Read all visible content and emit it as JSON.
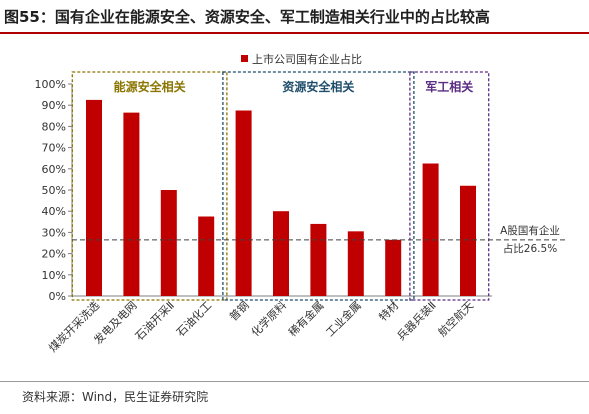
{
  "figure": {
    "title": "图55：国有企业在能源安全、资源安全、军工制造相关行业中的占比较高",
    "source": "资料来源：Wind，民生证券研究院"
  },
  "chart_data": {
    "type": "bar",
    "legend": "上市公司国有企业占比",
    "legend_position": "top",
    "categories": [
      "煤炭开采洗选",
      "发电及电网",
      "石油开采Ⅱ",
      "石油化工",
      "普钢",
      "化学原料",
      "稀有金属",
      "工业金属",
      "特材",
      "兵器兵装Ⅱ",
      "航空航天"
    ],
    "values": [
      92.5,
      86.5,
      50,
      37.5,
      87.5,
      40,
      34,
      30.5,
      26.5,
      62.5,
      52
    ],
    "ylim": [
      0,
      100
    ],
    "yticks": [
      "0%",
      "10%",
      "20%",
      "30%",
      "40%",
      "50%",
      "60%",
      "70%",
      "80%",
      "90%",
      "100%"
    ],
    "bar_color": "#c00000",
    "reference_line": {
      "value": 26.5,
      "label_line1": "A股国有企业",
      "label_line2": "占比26.5%"
    },
    "groups": [
      {
        "label": "能源安全相关",
        "from": 0,
        "to": 3,
        "color": "#8b7500"
      },
      {
        "label": "资源安全相关",
        "from": 4,
        "to": 8,
        "color": "#1f4e6b"
      },
      {
        "label": "军工相关",
        "from": 9,
        "to": 10,
        "color": "#5b2c83"
      }
    ]
  }
}
